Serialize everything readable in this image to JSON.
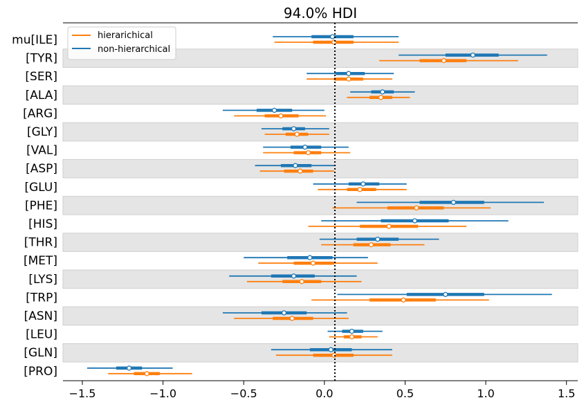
{
  "chart_data": {
    "type": "forest",
    "title": "94.0% HDI",
    "xlabel": "",
    "ylabel": "",
    "xlim": [
      -1.62,
      1.57
    ],
    "xticks": [
      -1.5,
      -1.0,
      -0.5,
      0.0,
      0.5,
      1.0,
      1.5
    ],
    "xtick_labels": [
      "−1.5",
      "−1.0",
      "−0.5",
      "0.0",
      "0.5",
      "1.0",
      "1.5"
    ],
    "reference_line": 0.065,
    "legend_position": "top-left",
    "alternating_row_shading": true,
    "categories": [
      "mu[ILE]",
      "[TYR]",
      "[SER]",
      "[ALA]",
      "[ARG]",
      "[GLY]",
      "[VAL]",
      "[ASP]",
      "[GLU]",
      "[PHE]",
      "[HIS]",
      "[THR]",
      "[MET]",
      "[LYS]",
      "[TRP]",
      "[ASN]",
      "[LEU]",
      "[GLN]",
      "[PRO]"
    ],
    "series": [
      {
        "name": "hierarichical",
        "color": "#ff7f0e",
        "points": [
          {
            "low": -0.31,
            "q1": -0.07,
            "mid": 0.06,
            "q3": 0.18,
            "high": 0.46
          },
          {
            "low": 0.34,
            "q1": 0.59,
            "mid": 0.74,
            "q3": 0.88,
            "high": 1.2
          },
          {
            "low": -0.11,
            "q1": 0.06,
            "mid": 0.15,
            "q3": 0.24,
            "high": 0.42
          },
          {
            "low": 0.14,
            "q1": 0.28,
            "mid": 0.35,
            "q3": 0.42,
            "high": 0.53
          },
          {
            "low": -0.56,
            "q1": -0.37,
            "mid": -0.27,
            "q3": -0.16,
            "high": 0.01
          },
          {
            "low": -0.37,
            "q1": -0.24,
            "mid": -0.17,
            "q3": -0.1,
            "high": 0.03
          },
          {
            "low": -0.38,
            "q1": -0.19,
            "mid": -0.1,
            "q3": -0.02,
            "high": 0.16
          },
          {
            "low": -0.4,
            "q1": -0.25,
            "mid": -0.15,
            "q3": -0.07,
            "high": 0.06
          },
          {
            "low": -0.04,
            "q1": 0.14,
            "mid": 0.22,
            "q3": 0.32,
            "high": 0.51
          },
          {
            "low": 0.05,
            "q1": 0.39,
            "mid": 0.57,
            "q3": 0.74,
            "high": 1.03
          },
          {
            "low": -0.1,
            "q1": 0.22,
            "mid": 0.4,
            "q3": 0.58,
            "high": 0.88
          },
          {
            "low": -0.02,
            "q1": 0.18,
            "mid": 0.29,
            "q3": 0.41,
            "high": 0.62
          },
          {
            "low": -0.41,
            "q1": -0.19,
            "mid": -0.07,
            "q3": 0.06,
            "high": 0.33
          },
          {
            "low": -0.48,
            "q1": -0.26,
            "mid": -0.14,
            "q3": -0.02,
            "high": 0.23
          },
          {
            "low": -0.08,
            "q1": 0.28,
            "mid": 0.49,
            "q3": 0.69,
            "high": 1.02
          },
          {
            "low": -0.56,
            "q1": -0.32,
            "mid": -0.2,
            "q3": -0.07,
            "high": 0.15
          },
          {
            "low": 0.03,
            "q1": 0.12,
            "mid": 0.17,
            "q3": 0.23,
            "high": 0.33
          },
          {
            "low": -0.3,
            "q1": -0.07,
            "mid": 0.06,
            "q3": 0.18,
            "high": 0.42
          },
          {
            "low": -1.34,
            "q1": -1.18,
            "mid": -1.1,
            "q3": -1.02,
            "high": -0.82
          }
        ]
      },
      {
        "name": "non-hierarchical",
        "color": "#1f77b4",
        "points": [
          {
            "low": -0.32,
            "q1": -0.08,
            "mid": 0.05,
            "q3": 0.18,
            "high": 0.46
          },
          {
            "low": 0.46,
            "q1": 0.75,
            "mid": 0.92,
            "q3": 1.08,
            "high": 1.38
          },
          {
            "low": -0.11,
            "q1": 0.07,
            "mid": 0.15,
            "q3": 0.25,
            "high": 0.43
          },
          {
            "low": 0.16,
            "q1": 0.29,
            "mid": 0.36,
            "q3": 0.43,
            "high": 0.56
          },
          {
            "low": -0.63,
            "q1": -0.42,
            "mid": -0.31,
            "q3": -0.2,
            "high": 0.0
          },
          {
            "low": -0.39,
            "q1": -0.26,
            "mid": -0.19,
            "q3": -0.12,
            "high": 0.03
          },
          {
            "low": -0.38,
            "q1": -0.21,
            "mid": -0.12,
            "q3": -0.02,
            "high": 0.15
          },
          {
            "low": -0.43,
            "q1": -0.27,
            "mid": -0.18,
            "q3": -0.08,
            "high": 0.07
          },
          {
            "low": -0.07,
            "q1": 0.15,
            "mid": 0.24,
            "q3": 0.34,
            "high": 0.51
          },
          {
            "low": 0.2,
            "q1": 0.59,
            "mid": 0.8,
            "q3": 0.99,
            "high": 1.36
          },
          {
            "low": -0.02,
            "q1": 0.35,
            "mid": 0.56,
            "q3": 0.77,
            "high": 1.14
          },
          {
            "low": -0.03,
            "q1": 0.2,
            "mid": 0.33,
            "q3": 0.46,
            "high": 0.71
          },
          {
            "low": -0.5,
            "q1": -0.23,
            "mid": -0.09,
            "q3": 0.05,
            "high": 0.27
          },
          {
            "low": -0.59,
            "q1": -0.33,
            "mid": -0.19,
            "q3": -0.06,
            "high": 0.2
          },
          {
            "low": 0.08,
            "q1": 0.51,
            "mid": 0.75,
            "q3": 0.99,
            "high": 1.41
          },
          {
            "low": -0.63,
            "q1": -0.39,
            "mid": -0.25,
            "q3": -0.11,
            "high": 0.14
          },
          {
            "low": 0.02,
            "q1": 0.11,
            "mid": 0.17,
            "q3": 0.24,
            "high": 0.36
          },
          {
            "low": -0.33,
            "q1": -0.09,
            "mid": 0.04,
            "q3": 0.17,
            "high": 0.42
          },
          {
            "low": -1.47,
            "q1": -1.29,
            "mid": -1.21,
            "q3": -1.13,
            "high": -0.94
          }
        ]
      }
    ]
  }
}
